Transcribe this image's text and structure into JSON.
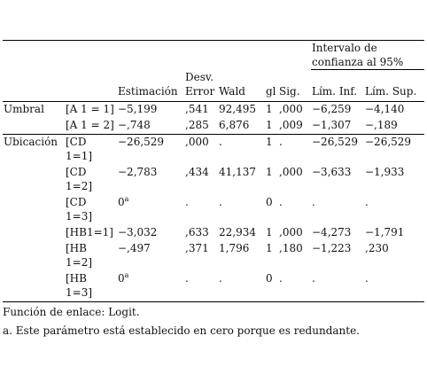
{
  "table": {
    "group_header": "Intervalo de confianza al 95%",
    "columns": [
      "Estimación",
      "Desv. Error",
      "Wald",
      "gl",
      "Sig.",
      "Lím. Inf.",
      "Lím. Sup."
    ],
    "groups": [
      {
        "label": "Umbral",
        "rows": [
          {
            "label": "[A 1 = 1]",
            "cells": [
              "−5,199",
              ",541",
              "92,495",
              "1",
              ",000",
              "−6,259",
              "−4,140"
            ]
          },
          {
            "label": "[A 1 = 2]",
            "cells": [
              "−,748",
              ",285",
              "6,876",
              "1",
              ",009",
              "−1,307",
              "−,189"
            ]
          }
        ]
      },
      {
        "label": "Ubicación",
        "rows": [
          {
            "label": "[CD 1=1]",
            "cells": [
              "−26,529",
              ",000",
              ".",
              "1",
              ".",
              "−26,529",
              "−26,529"
            ]
          },
          {
            "label": "[CD 1=2]",
            "cells": [
              "−2,783",
              ",434",
              "41,137",
              "1",
              ",000",
              "−3,633",
              "−1,933"
            ]
          },
          {
            "label": "[CD 1=3]",
            "cells": [
              "0",
              ".",
              ".",
              "0",
              ".",
              ".",
              "."
            ],
            "sup": "a"
          },
          {
            "label": "[HB1=1]",
            "cells": [
              "−3,032",
              ",633",
              "22,934",
              "1",
              ",000",
              "−4,273",
              "−1,791"
            ]
          },
          {
            "label": "[HB 1=2]",
            "cells": [
              "−,497",
              ",371",
              "1,796",
              "1",
              ",180",
              "−1,223",
              ",230"
            ]
          },
          {
            "label": "[HB 1=3]",
            "cells": [
              "0",
              ".",
              ".",
              "0",
              ".",
              ".",
              "."
            ],
            "sup": "a"
          }
        ]
      }
    ],
    "footnotes": [
      "Función de enlace: Logit.",
      "a. Este parámetro está establecido en cero porque es redundante."
    ]
  }
}
